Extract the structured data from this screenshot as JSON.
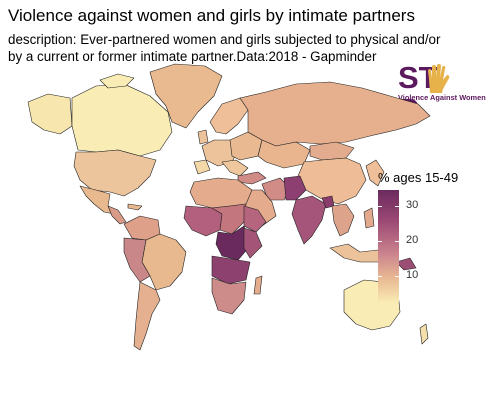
{
  "title": "Violence against women and girls by intimate partners",
  "description_line1": "description: Ever-partnered women and girls subjected to physical and/or",
  "description_line2": "by a current or former intimate partner.Data:2018 - Gapminder",
  "logo": {
    "word_left": "ST",
    "word_right": "P",
    "tagline": "Violence Against Women",
    "color": "#5c1a5e",
    "accent": "#e8b24a"
  },
  "legend": {
    "title": "% ages 15-49",
    "ticks": [
      "30",
      "20",
      "10"
    ]
  },
  "palette": {
    "low": "#f9eab2",
    "mid_low": "#e8b793",
    "mid": "#c87f8c",
    "mid_high": "#9c4a74",
    "high": "#6b2a5e"
  }
}
